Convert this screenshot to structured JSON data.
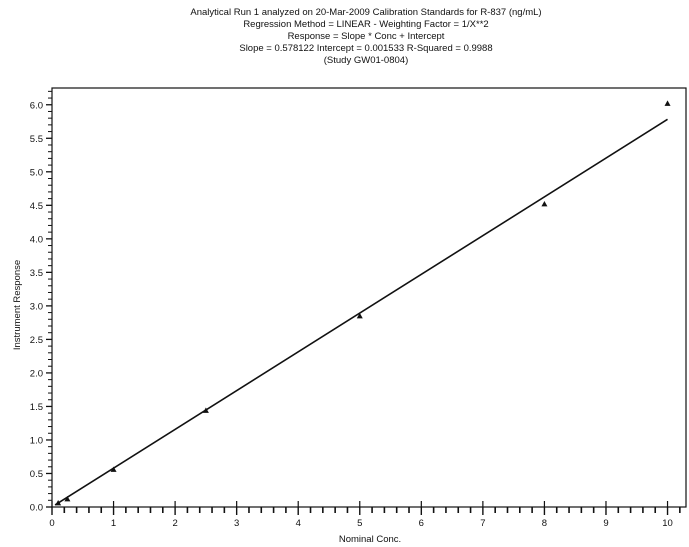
{
  "chart_data": {
    "type": "scatter",
    "title_lines": [
      "Analytical Run 1 analyzed on 20-Mar-2009 Calibration Standards for R-837 (ng/mL)",
      "Regression Method = LINEAR - Weighting Factor = 1/X**2",
      "Response = Slope * Conc + Intercept",
      "Slope = 0.578122 Intercept = 0.001533 R-Squared = 0.9988",
      "(Study GW01-0804)"
    ],
    "xlabel": "Nominal Conc.",
    "ylabel": "Instrument Response",
    "xlim": [
      0,
      10.3
    ],
    "ylim": [
      0,
      6.25
    ],
    "x_ticks": [
      0,
      1,
      2,
      3,
      4,
      5,
      6,
      7,
      8,
      9,
      10
    ],
    "x_tick_labels": [
      "0",
      "1",
      "2",
      "3",
      "4",
      "5",
      "6",
      "7",
      "8",
      "9",
      "10"
    ],
    "y_ticks": [
      0.0,
      0.5,
      1.0,
      1.5,
      2.0,
      2.5,
      3.0,
      3.5,
      4.0,
      4.5,
      5.0,
      5.5,
      6.0
    ],
    "y_tick_labels": [
      "0.0",
      "0.5",
      "1.0",
      "1.5",
      "2.0",
      "2.5",
      "3.0",
      "3.5",
      "4.0",
      "4.5",
      "5.0",
      "5.5",
      "6.0"
    ],
    "x_minor_step": 0.2,
    "y_minor_step": 0.1,
    "grid": false,
    "points": [
      {
        "x": 0.1,
        "y": 0.06
      },
      {
        "x": 0.25,
        "y": 0.12
      },
      {
        "x": 1.0,
        "y": 0.56
      },
      {
        "x": 2.5,
        "y": 1.44
      },
      {
        "x": 5.0,
        "y": 2.85
      },
      {
        "x": 8.0,
        "y": 4.52
      },
      {
        "x": 10.0,
        "y": 6.02
      }
    ],
    "regression": {
      "slope": 0.578122,
      "intercept": 0.001533,
      "x_range": [
        0.05,
        10.0
      ]
    },
    "colors": {
      "ink": "#111111",
      "background": "#ffffff"
    }
  }
}
